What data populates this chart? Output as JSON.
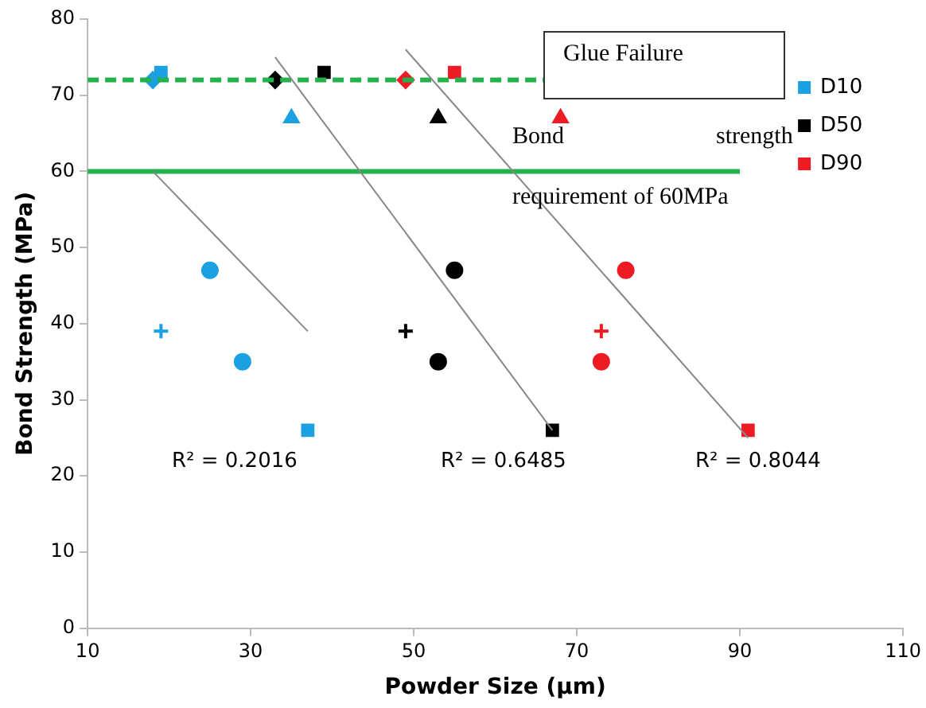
{
  "chart_data": {
    "type": "scatter",
    "xlabel": "Powder Size (µm)",
    "ylabel": "Bond Strength (MPa)",
    "xlim": [
      10,
      110
    ],
    "xticks": [
      10,
      30,
      50,
      70,
      90,
      110
    ],
    "ylim": [
      0,
      80
    ],
    "yticks": [
      0,
      10,
      20,
      30,
      40,
      50,
      60,
      70,
      80
    ],
    "grid": false,
    "legend": "top right",
    "series": [
      {
        "name": "D10",
        "color": "#1ba1e2",
        "marker": "square",
        "x": [
          19
        ],
        "values": [
          73
        ]
      },
      {
        "color": "#1ba1e2",
        "marker": "diamond",
        "x": [
          18
        ],
        "values": [
          72
        ]
      },
      {
        "color": "#1ba1e2",
        "marker": "triangle",
        "x": [
          35
        ],
        "values": [
          67
        ]
      },
      {
        "color": "#1ba1e2",
        "marker": "circle",
        "x": [
          25
        ],
        "values": [
          47
        ]
      },
      {
        "color": "#1ba1e2",
        "marker": "cross",
        "x": [
          19
        ],
        "values": [
          39
        ]
      },
      {
        "color": "#1ba1e2",
        "marker": "circle",
        "x": [
          29
        ],
        "values": [
          35
        ]
      },
      {
        "color": "#1ba1e2",
        "marker": "square",
        "x": [
          37
        ],
        "values": [
          26
        ]
      },
      {
        "name": "D50",
        "color": "#000000",
        "marker": "square",
        "x": [
          39
        ],
        "values": [
          73
        ]
      },
      {
        "color": "#000000",
        "marker": "diamond",
        "x": [
          33
        ],
        "values": [
          72
        ]
      },
      {
        "color": "#000000",
        "marker": "triangle",
        "x": [
          53
        ],
        "values": [
          67
        ]
      },
      {
        "color": "#000000",
        "marker": "circle",
        "x": [
          55
        ],
        "values": [
          47
        ]
      },
      {
        "color": "#000000",
        "marker": "cross",
        "x": [
          49
        ],
        "values": [
          39
        ]
      },
      {
        "color": "#000000",
        "marker": "circle",
        "x": [
          53
        ],
        "values": [
          35
        ]
      },
      {
        "color": "#000000",
        "marker": "square",
        "x": [
          67
        ],
        "values": [
          26
        ]
      },
      {
        "name": "D90",
        "color": "#ed1c24",
        "marker": "square",
        "x": [
          55
        ],
        "values": [
          73
        ]
      },
      {
        "color": "#ed1c24",
        "marker": "diamond",
        "x": [
          49
        ],
        "values": [
          72
        ]
      },
      {
        "color": "#ed1c24",
        "marker": "triangle",
        "x": [
          68
        ],
        "values": [
          67
        ]
      },
      {
        "color": "#ed1c24",
        "marker": "circle",
        "x": [
          76
        ],
        "values": [
          47
        ]
      },
      {
        "color": "#ed1c24",
        "marker": "cross",
        "x": [
          73
        ],
        "values": [
          39
        ]
      },
      {
        "color": "#ed1c24",
        "marker": "circle",
        "x": [
          73
        ],
        "values": [
          35
        ]
      },
      {
        "color": "#ed1c24",
        "marker": "square",
        "x": [
          91
        ],
        "values": [
          26
        ]
      },
      {
        "type": "line",
        "color": "#888888",
        "marker": "none",
        "x": [
          18,
          37
        ],
        "values": [
          60,
          39
        ]
      },
      {
        "type": "line",
        "color": "#888888",
        "marker": "none",
        "x": [
          33,
          67
        ],
        "values": [
          75,
          26
        ]
      },
      {
        "type": "line",
        "color": "#888888",
        "marker": "none",
        "x": [
          49,
          91
        ],
        "values": [
          76,
          25
        ]
      },
      {
        "type": "line",
        "color": "#22b14c",
        "marker": "none",
        "line_style": "dashed",
        "x": [
          10,
          66
        ],
        "values": [
          72,
          72
        ]
      },
      {
        "type": "line",
        "color": "#22b14c",
        "marker": "none",
        "line_style": "solid",
        "x": [
          10,
          90
        ],
        "values": [
          60,
          60
        ]
      }
    ],
    "annotations": [
      "Glue Failure",
      "Bond",
      "strength",
      "requirement of 60MPa",
      "R² = 0.2016",
      "R² = 0.6485",
      "R² = 0.8044"
    ]
  }
}
